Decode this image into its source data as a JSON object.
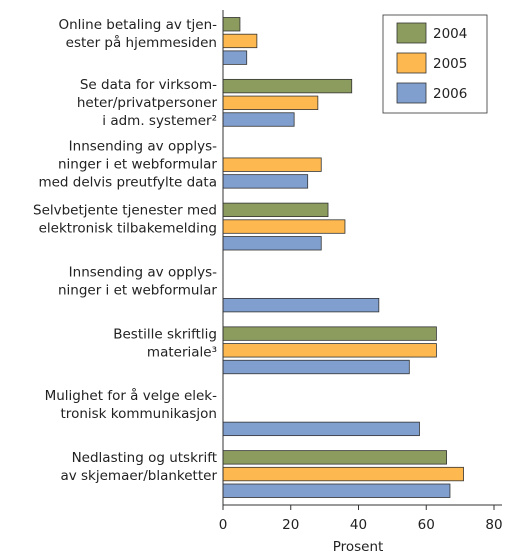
{
  "chart_data": {
    "type": "bar",
    "orientation": "horizontal",
    "xlabel": "Prosent",
    "categories": [
      [
        "Online betaling av tjen-",
        "ester på hjemmesiden"
      ],
      [
        "Se data for virksom-",
        "heter/privatpersoner",
        "i adm. systemer²"
      ],
      [
        "Innsending av opplys-",
        "ninger i et webformular",
        "med delvis preutfylte data"
      ],
      [
        "Selvbetjente tjenester med",
        "elektronisk tilbakemelding"
      ],
      [
        "Innsending av opplys-",
        "ninger i et webformular"
      ],
      [
        "Bestille skriftlig",
        "materiale³"
      ],
      [
        "Mulighet for å velge elek-",
        "tronisk kommunikasjon"
      ],
      [
        "Nedlasting og utskrift",
        "av skjemaer/blanketter"
      ]
    ],
    "series": [
      {
        "name": "2004",
        "color": "#8c9c5f",
        "values": [
          5,
          38,
          null,
          31,
          null,
          63,
          null,
          66
        ]
      },
      {
        "name": "2005",
        "color": "#fdb94f",
        "values": [
          10,
          28,
          29,
          36,
          null,
          63,
          null,
          71
        ]
      },
      {
        "name": "2006",
        "color": "#809fcf",
        "values": [
          7,
          21,
          25,
          29,
          46,
          55,
          58,
          67
        ]
      }
    ],
    "xlim": [
      0,
      80
    ],
    "xticks": [
      0,
      20,
      40,
      60,
      80
    ],
    "legend": "top-right"
  }
}
